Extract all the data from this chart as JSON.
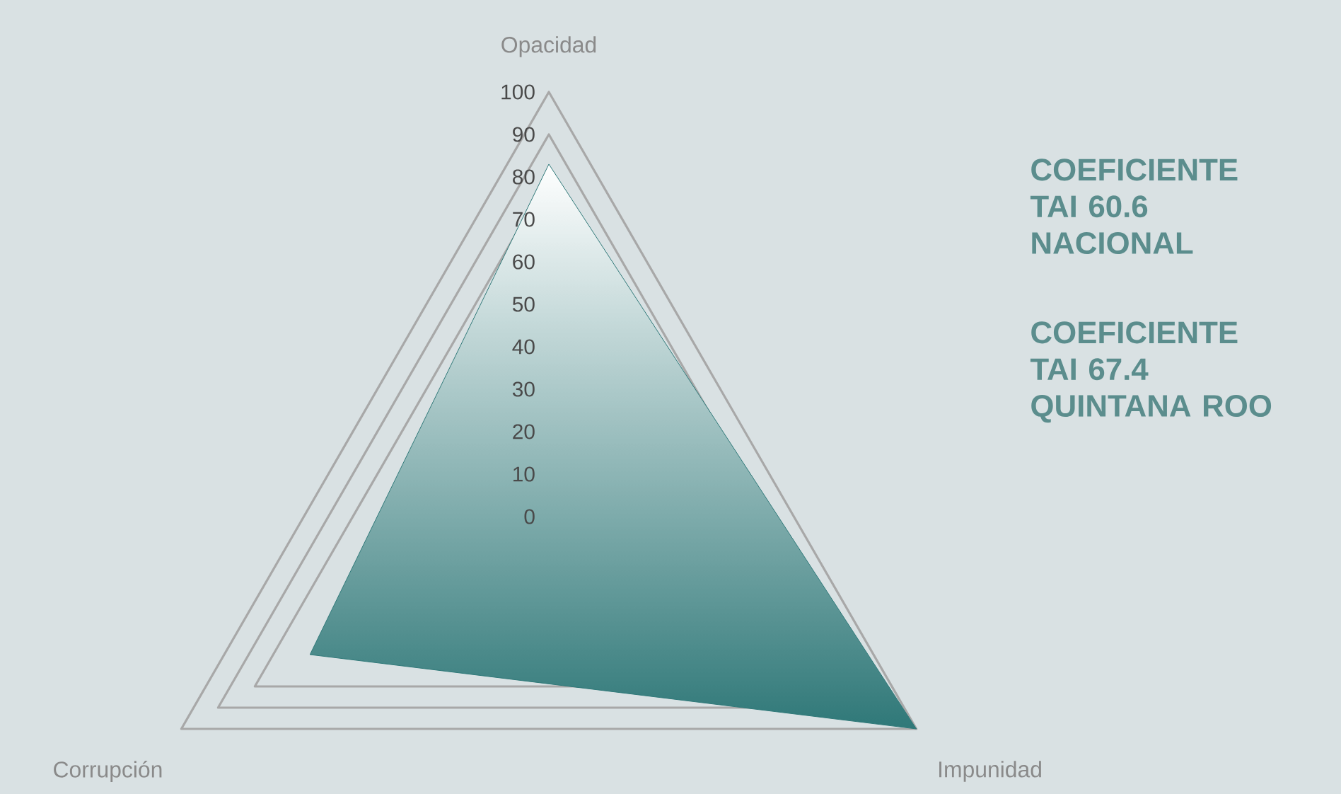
{
  "chart_data": {
    "type": "radar",
    "categories": [
      "Opacidad",
      "Impunidad",
      "Corrupción"
    ],
    "series": [
      {
        "color": "#2f7878",
        "values": [
          83,
          100,
          65
        ]
      }
    ],
    "ylim": [
      0,
      100
    ],
    "yticks": [
      0,
      10,
      20,
      30,
      40,
      50,
      60,
      70,
      80,
      90,
      100
    ],
    "grid": true,
    "annotations": [
      "COEFICIENTE TAI 60.6 NACIONAL",
      "COEFICIENTE TAI 67.4 QUINTANA ROO"
    ]
  }
}
